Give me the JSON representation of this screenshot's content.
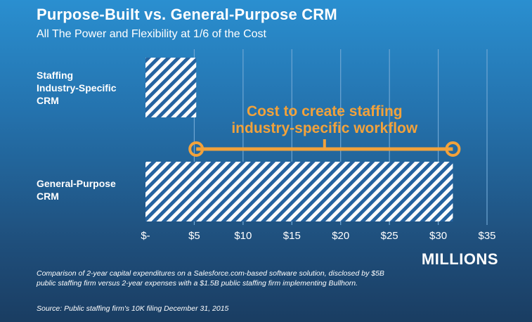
{
  "chart_data": {
    "type": "bar",
    "orientation": "horizontal",
    "title": "Purpose-Built vs. General-Purpose CRM",
    "subtitle": "All The Power and Flexibility at 1/6 of the Cost",
    "categories": [
      "Staffing Industry-Specific CRM",
      "General-Purpose CRM"
    ],
    "values": [
      5.2,
      31.5
    ],
    "xlim": [
      0,
      35
    ],
    "x_ticks": [
      0,
      5,
      10,
      15,
      20,
      25,
      30,
      35
    ],
    "x_tick_labels": [
      "$-",
      "$5",
      "$10",
      "$15",
      "$20",
      "$25",
      "$30",
      "$35"
    ],
    "xlabel": "MILLIONS",
    "grid": "vertical",
    "annotation": {
      "text": "Cost to create staffing industry-specific workflow",
      "range": [
        5.2,
        31.5
      ]
    },
    "colors": {
      "bar_fill": "#ffffff",
      "hatch_bg": "#2563a0",
      "annotation": "#f2a23b",
      "gridline": "#6fa6d3"
    }
  },
  "footnote": "Comparison of 2-year capital expenditures on a Salesforce.com-based software solution, disclosed by $5B public staffing firm versus 2-year expenses with a $1.5B public staffing firm implementing Bullhorn.",
  "source": "Source: Public staffing firm's 10K filing December 31, 2015"
}
